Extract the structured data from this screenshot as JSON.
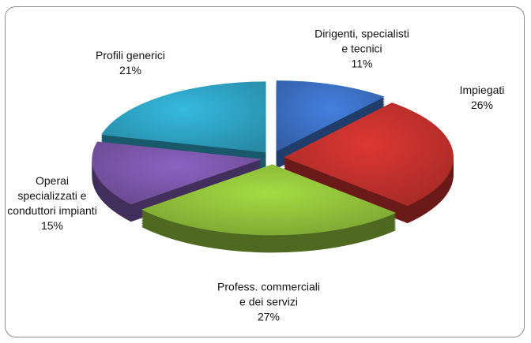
{
  "chart_data": {
    "type": "pie",
    "categories": [
      "Dirigenti, specialisti e tecnici",
      "Impiegati",
      "Profess. commerciali e dei servizi",
      "Operai specializzati e conduttori impianti",
      "Profili generici"
    ],
    "values": [
      11,
      26,
      27,
      15,
      21
    ],
    "value_labels": [
      "11%",
      "26%",
      "27%",
      "15%",
      "21%"
    ],
    "colors": [
      "#3b6fc2",
      "#c0302c",
      "#8fbf3a",
      "#7a55a8",
      "#2ea2c2"
    ]
  }
}
